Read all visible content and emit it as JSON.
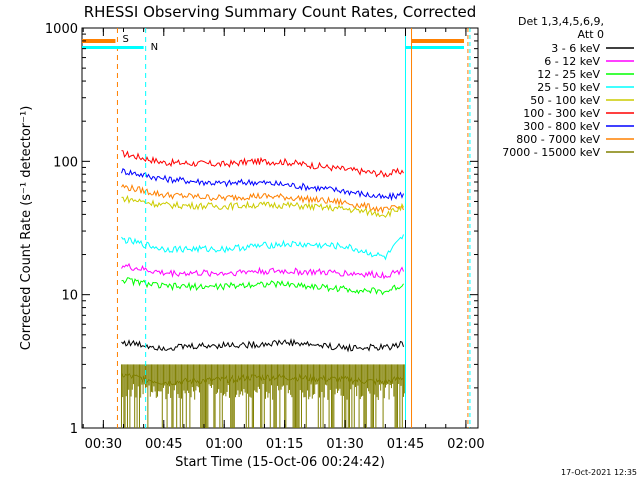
{
  "chart_data": {
    "type": "line",
    "title": "RHESSI Observing Summary Count Rates, Corrected",
    "xlabel": "Start Time (15-Oct-06 00:24:42)",
    "ylabel": "Corrected Count Rate (s⁻¹ detector⁻¹)",
    "y_scale": "log",
    "ylim": [
      1,
      1000
    ],
    "xlim": [
      "00:24:42",
      "02:03:00"
    ],
    "x_ticks": [
      "00:30",
      "00:45",
      "01:00",
      "01:15",
      "01:30",
      "01:45",
      "02:00"
    ],
    "y_ticks": [
      "1",
      "10",
      "100",
      "1000"
    ],
    "legend": {
      "header": [
        "Det 1,3,4,5,6,9,",
        "Att 0"
      ],
      "placement": "right",
      "entries": [
        {
          "label": "3 - 6 keV",
          "color": "#000000"
        },
        {
          "label": "6 - 12 keV",
          "color": "#ff00ff"
        },
        {
          "label": "12 - 25 keV",
          "color": "#00ff00"
        },
        {
          "label": "25 - 50 keV",
          "color": "#00ffff"
        },
        {
          "label": "50 - 100 keV",
          "color": "#cccc00"
        },
        {
          "label": "100 - 300 keV",
          "color": "#ff0000"
        },
        {
          "label": "300 - 800 keV",
          "color": "#0000ff"
        },
        {
          "label": "800 - 7000 keV",
          "color": "#ff8000"
        },
        {
          "label": "7000 - 15000 keV",
          "color": "#808000"
        }
      ]
    },
    "annotations": [
      {
        "label": "S",
        "time": "00:33:30",
        "color": "#ff8000"
      },
      {
        "label": "N",
        "time": "00:40:30",
        "color": "#00ffff"
      }
    ],
    "x": [
      "00:34:30",
      "00:45",
      "01:00",
      "01:07",
      "01:15",
      "01:30",
      "01:40",
      "01:44:50"
    ],
    "series": [
      {
        "name": "100 - 300 keV",
        "color": "#ff0000",
        "values": [
          115,
          98,
          95,
          100,
          99,
          87,
          80,
          85
        ]
      },
      {
        "name": "300 - 800 keV",
        "color": "#0000ff",
        "values": [
          85,
          74,
          68,
          70,
          67,
          60,
          53,
          57
        ]
      },
      {
        "name": "800 - 7000 keV",
        "color": "#ff8000",
        "values": [
          65,
          56,
          53,
          55,
          54,
          49,
          43,
          46
        ]
      },
      {
        "name": "50 - 100 keV",
        "color": "#cccc00",
        "values": [
          53,
          47,
          46,
          47,
          47,
          44,
          40,
          46
        ]
      },
      {
        "name": "25 - 50 keV",
        "color": "#00ffff",
        "values": [
          26,
          22,
          22,
          23,
          24,
          23,
          19,
          28
        ]
      },
      {
        "name": "6 - 12 keV",
        "color": "#ff00ff",
        "values": [
          16.5,
          14.5,
          14.5,
          15,
          15,
          14.5,
          14,
          15.5
        ]
      },
      {
        "name": "12 - 25 keV",
        "color": "#00ff00",
        "values": [
          13,
          11.5,
          11.5,
          12,
          12,
          11,
          10.5,
          12
        ]
      },
      {
        "name": "3 - 6 keV",
        "color": "#000000",
        "values": [
          4.4,
          4.0,
          4.2,
          4.2,
          4.4,
          4.0,
          4.0,
          4.3
        ]
      },
      {
        "name": "7000 - 15000 keV",
        "color": "#808000",
        "values": [
          2.5,
          2.2,
          2.3,
          2.4,
          2.4,
          2.3,
          2.2,
          2.4
        ]
      }
    ],
    "bands": [
      {
        "label": "7000 - 15000 keV",
        "color": "#808000",
        "low": 1,
        "high": 3
      }
    ]
  },
  "footer": {
    "timestamp": "17-Oct-2021 12:35"
  }
}
